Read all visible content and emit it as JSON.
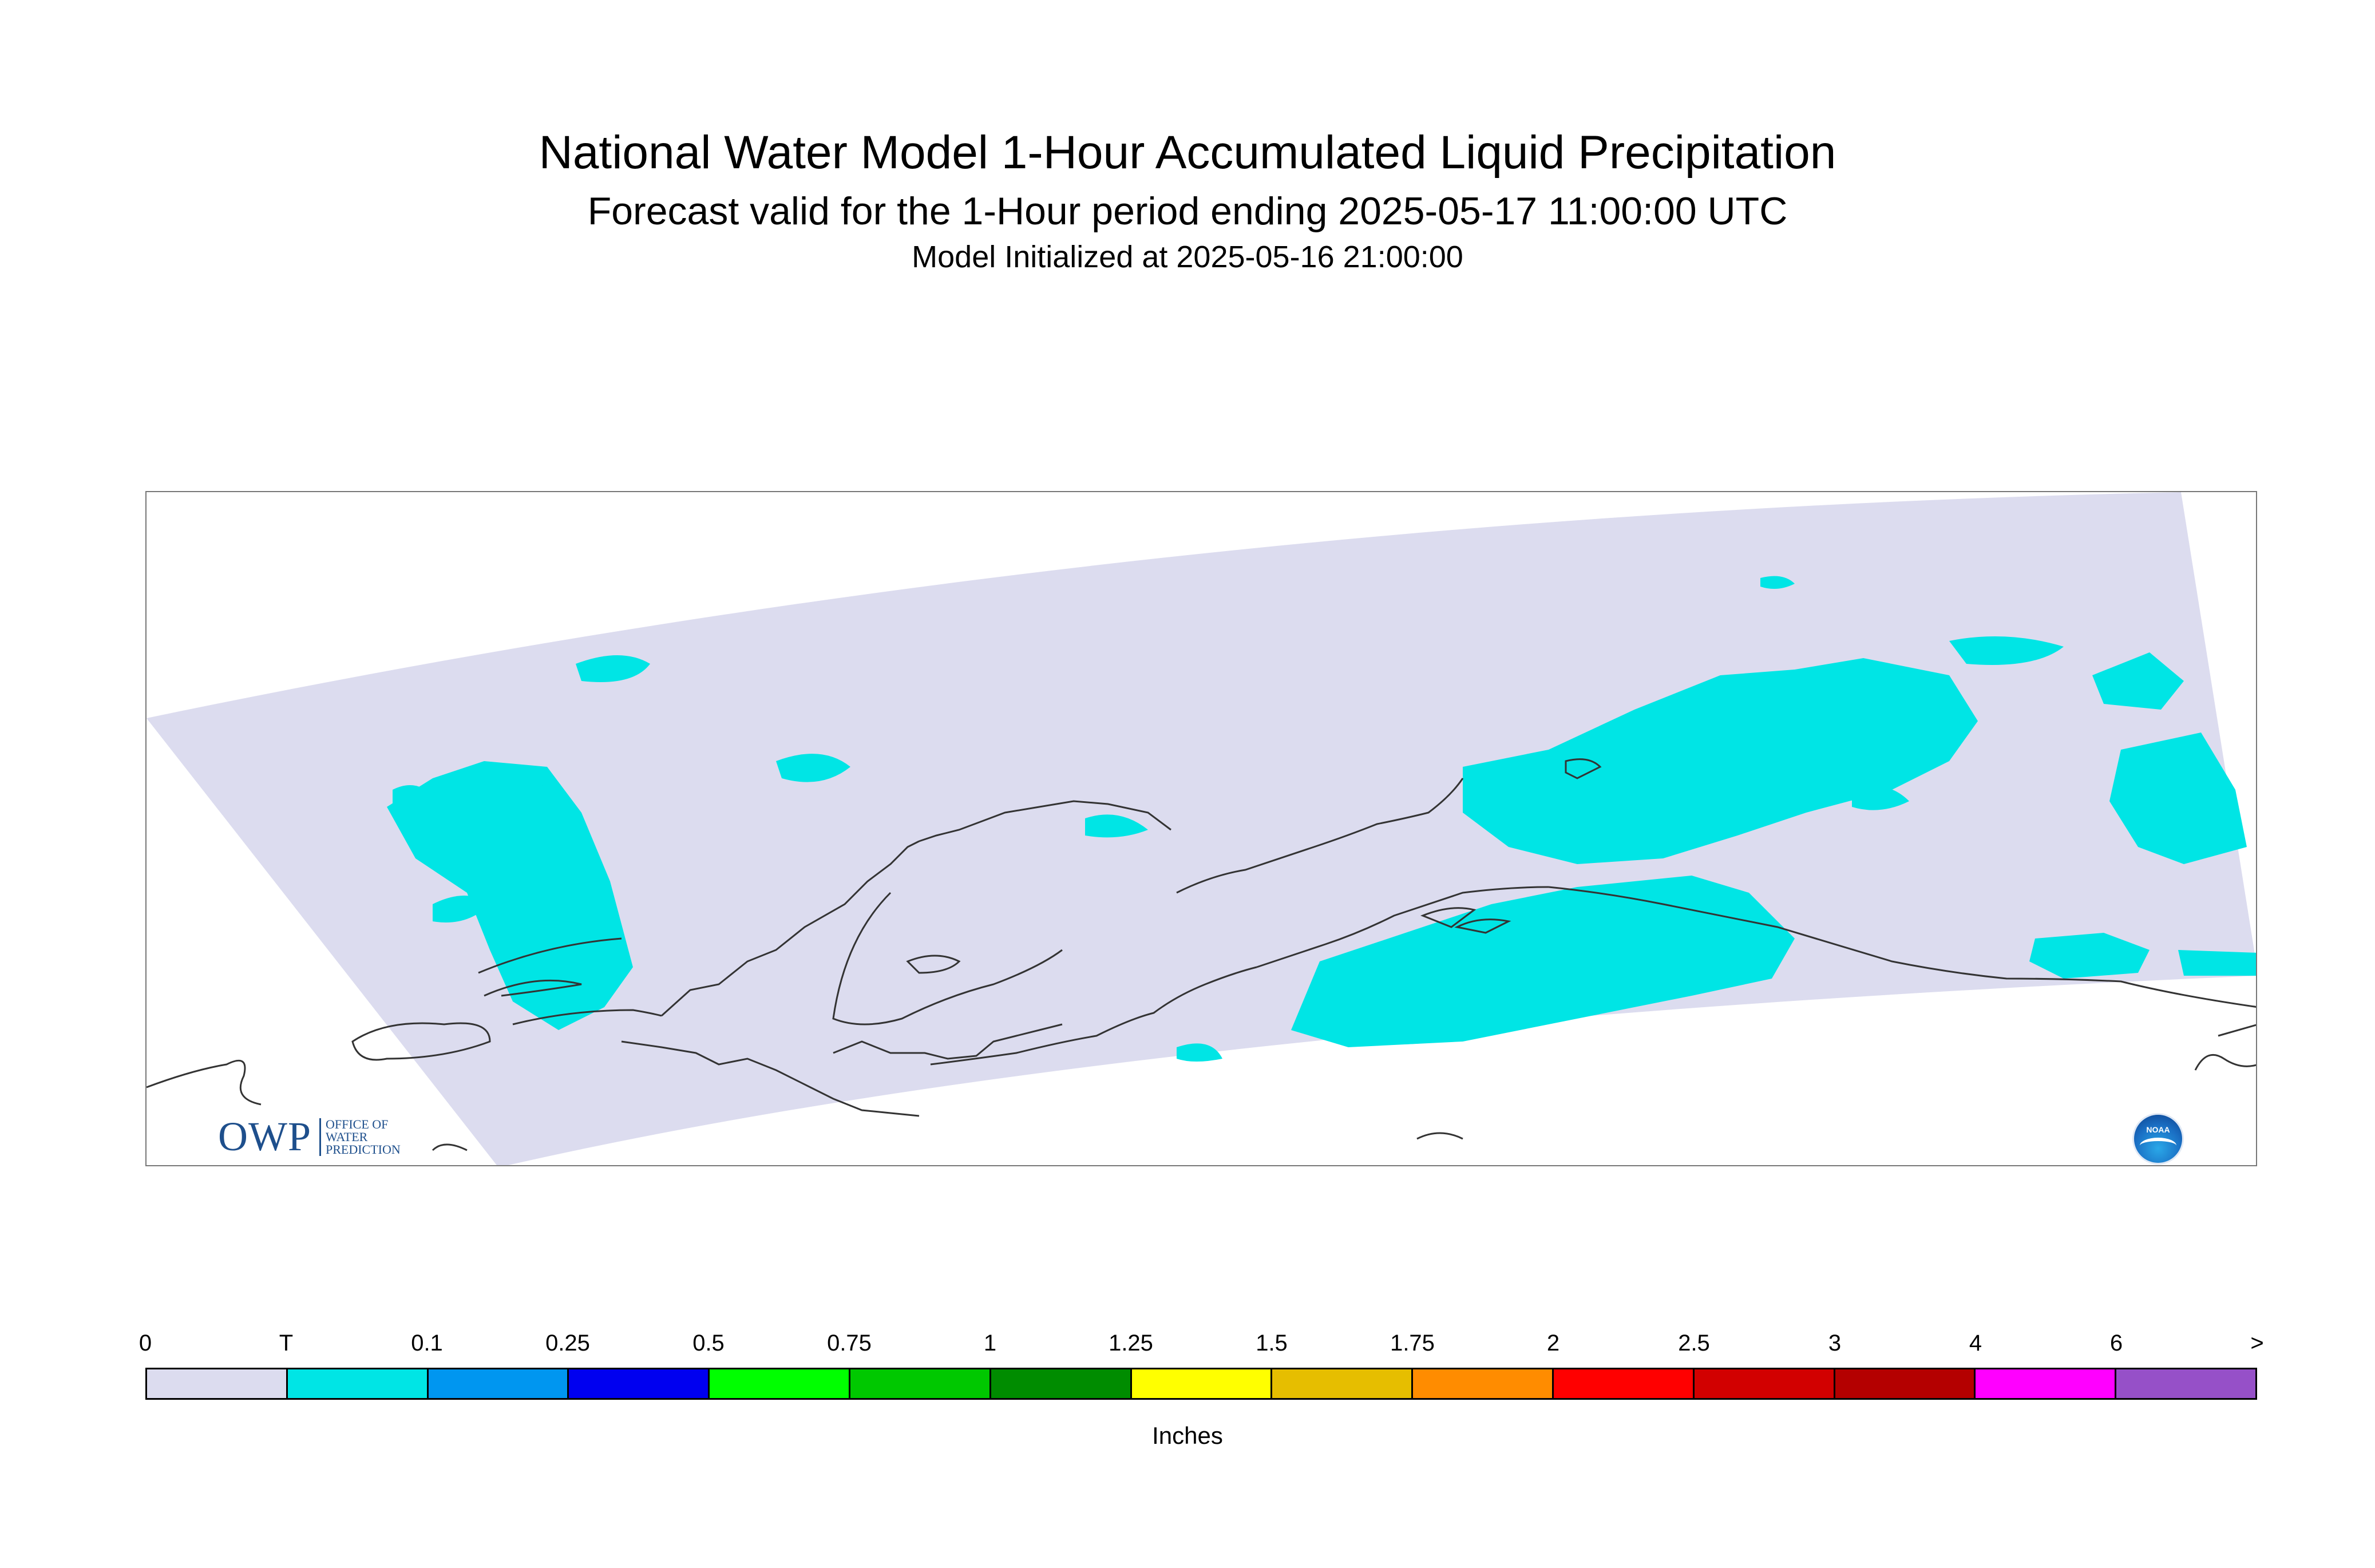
{
  "title": "National Water Model 1-Hour Accumulated Liquid Precipitation",
  "subtitle": "Forecast valid for the 1-Hour period ending 2025-05-17 11:00:00 UTC",
  "init_line": "Model Initialized at 2025-05-16 21:00:00",
  "logos": {
    "owp_word": "OWP",
    "owp_line1": "OFFICE OF",
    "owp_line2": "WATER",
    "owp_line3": "PREDICTION",
    "noaa": "NOAA"
  },
  "colors": {
    "domain_fill": "#dcdcef",
    "precip_trace": "#00e5e5",
    "coastline": "#333333"
  },
  "legend": {
    "units": "Inches",
    "labels": [
      "0",
      "T",
      "0.1",
      "0.25",
      "0.5",
      "0.75",
      "1",
      "1.25",
      "1.5",
      "1.75",
      "2",
      "2.5",
      "3",
      "4",
      "6",
      ">"
    ],
    "colors": [
      "#dcdcef",
      "#00e5e5",
      "#0096f0",
      "#0000f0",
      "#00ff00",
      "#00c800",
      "#008c00",
      "#ffff00",
      "#e6be00",
      "#ff8c00",
      "#ff0000",
      "#d20000",
      "#b40000",
      "#ff00ff",
      "#9650c8"
    ]
  }
}
